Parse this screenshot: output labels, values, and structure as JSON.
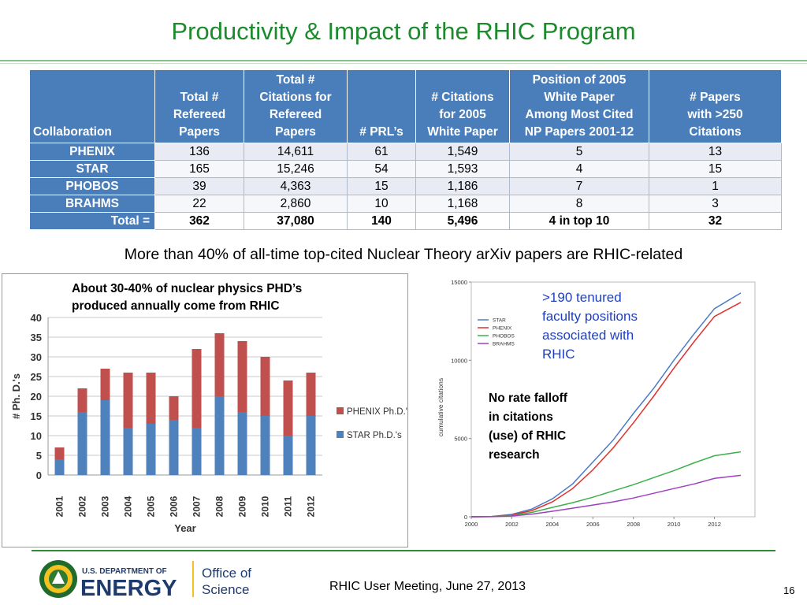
{
  "title": "Productivity & Impact of the RHIC Program",
  "table": {
    "headers": [
      "Collaboration",
      "Total # Refereed Papers",
      "Total # Citations for Refereed Papers",
      "# PRL’s",
      "# Citations for 2005 White Paper",
      "Position of 2005 White Paper Among Most Cited NP Papers 2001-12",
      "# Papers with >250 Citations"
    ],
    "header_lines": [
      [
        "Collaboration"
      ],
      [
        "Total #",
        "Refereed",
        "Papers"
      ],
      [
        "Total #",
        "Citations for",
        "Refereed",
        "Papers"
      ],
      [
        "# PRL’s"
      ],
      [
        "# Citations",
        "for 2005",
        "White Paper"
      ],
      [
        "Position of 2005",
        "White Paper",
        "Among Most Cited",
        "NP Papers 2001-12"
      ],
      [
        "# Papers",
        "with >250",
        "Citations"
      ]
    ],
    "rows": [
      [
        "PHENIX",
        "136",
        "14,611",
        "61",
        "1,549",
        "5",
        "13"
      ],
      [
        "STAR",
        "165",
        "15,246",
        "54",
        "1,593",
        "4",
        "15"
      ],
      [
        "PHOBOS",
        "39",
        "4,363",
        "15",
        "1,186",
        "7",
        "1"
      ],
      [
        "BRAHMS",
        "22",
        "2,860",
        "10",
        "1,168",
        "8",
        "3"
      ]
    ],
    "total": [
      "Total =",
      "362",
      "37,080",
      "140",
      "5,496",
      "4 in top 10",
      "32"
    ]
  },
  "arxiv_text": "More than 40% of all-time top-cited Nuclear Theory arXiv papers are RHIC-related",
  "phd_note": [
    "About 30-40% of nuclear physics PHD’s",
    "produced annually come from RHIC"
  ],
  "tenured_text": [
    ">190 tenured",
    "faculty positions",
    "associated with",
    "RHIC"
  ],
  "nofalloff_text": [
    "No rate falloff",
    "in citations",
    "(use) of RHIC",
    "research"
  ],
  "chart_data": [
    {
      "type": "bar",
      "stacked": true,
      "categories": [
        "2001",
        "2002",
        "2003",
        "2004",
        "2005",
        "2006",
        "2007",
        "2008",
        "2009",
        "2010",
        "2011",
        "2012"
      ],
      "series": [
        {
          "name": "STAR Ph.D.'s",
          "color": "#4f81bd",
          "values": [
            4,
            16,
            19,
            12,
            13,
            14,
            12,
            20,
            16,
            15,
            10,
            15
          ]
        },
        {
          "name": "PHENIX Ph.D.'s",
          "color": "#c0504d",
          "values": [
            3,
            6,
            8,
            14,
            13,
            6,
            20,
            16,
            18,
            15,
            14,
            11
          ]
        }
      ],
      "xlabel": "Year",
      "ylabel": "# Ph. D.'s",
      "ylim": [
        0,
        40
      ],
      "yticks": [
        0,
        5,
        10,
        15,
        20,
        25,
        30,
        35,
        40
      ],
      "grid": true,
      "legend": "right"
    },
    {
      "type": "line",
      "x": [
        2000,
        2001,
        2002,
        2003,
        2004,
        2005,
        2006,
        2007,
        2008,
        2009,
        2010,
        2011,
        2012,
        2013.3
      ],
      "series": [
        {
          "name": "STAR",
          "color": "#4a7bc8",
          "values": [
            0,
            20,
            150,
            500,
            1150,
            2100,
            3500,
            4900,
            6600,
            8200,
            10000,
            11700,
            13300,
            14300
          ]
        },
        {
          "name": "PHENIX",
          "color": "#e0302c",
          "values": [
            0,
            15,
            120,
            400,
            950,
            1800,
            3000,
            4400,
            6000,
            7700,
            9500,
            11200,
            12800,
            13700
          ]
        },
        {
          "name": "PHOBOS",
          "color": "#3cb04a",
          "values": [
            0,
            10,
            80,
            280,
            600,
            900,
            1250,
            1650,
            2050,
            2500,
            2950,
            3450,
            3900,
            4150
          ]
        },
        {
          "name": "BRAHMS",
          "color": "#a040c0",
          "values": [
            0,
            5,
            50,
            170,
            350,
            550,
            750,
            950,
            1200,
            1500,
            1800,
            2100,
            2450,
            2650
          ]
        }
      ],
      "ylabel": "cumulative citations",
      "xticks": [
        2000,
        2002,
        2004,
        2006,
        2008,
        2010,
        2012
      ],
      "yticks": [
        0,
        5000,
        10000,
        15000
      ],
      "xlim": [
        2000,
        2014
      ],
      "ylim": [
        0,
        15000
      ],
      "grid": false,
      "legend": "top-left"
    }
  ],
  "logo": {
    "line1": "U.S. DEPARTMENT OF",
    "line2": "ENERGY",
    "office1": "Office of",
    "office2": "Science"
  },
  "footer_text": "RHIC User Meeting, June 27, 2013",
  "page_number": "16",
  "colors": {
    "title_green": "#1c8a2d",
    "header_blue": "#4a7ebb",
    "tenured_blue": "#1f3fbf"
  }
}
